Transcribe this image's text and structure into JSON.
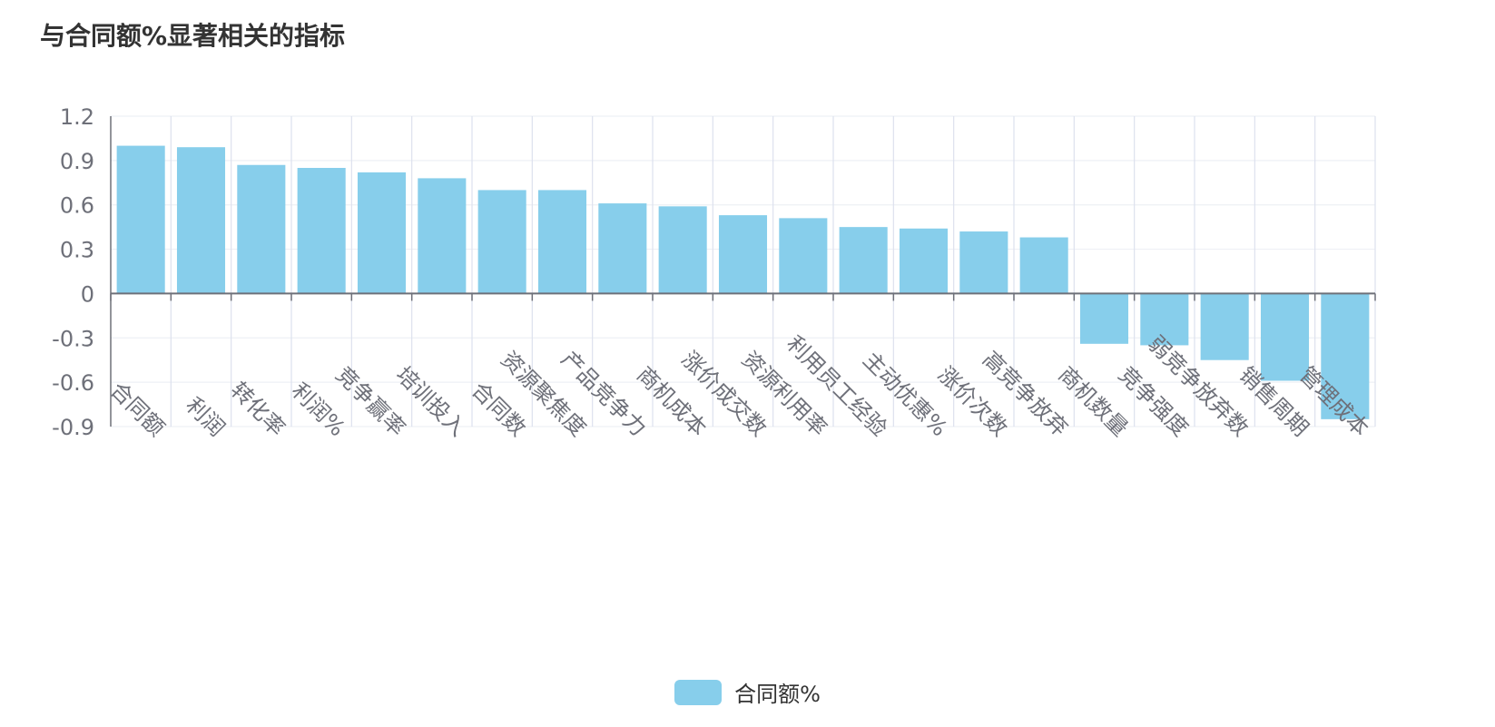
{
  "page": {
    "title": "与合同额%显著相关的指标"
  },
  "colors": {
    "bar": "#87CEEB",
    "axis": "#6E7079",
    "grid": "#EEF0F5",
    "vgrid": "#DDE1EE",
    "text": "#6E7079"
  },
  "chart_data": {
    "type": "bar",
    "categories": [
      "合同额",
      "利润",
      "转化率",
      "利润%",
      "竞争赢率",
      "培训投入",
      "合同数",
      "资源聚焦度",
      "产品竞争力",
      "商机成本",
      "涨价成交数",
      "资源利用率",
      "利用员工经验",
      "主动优惠%",
      "涨价次数",
      "高竞争放弃",
      "商机数量",
      "竞争强度",
      "弱竞争放弃数",
      "销售周期",
      "管理成本"
    ],
    "series": [
      {
        "name": "合同额%",
        "values": [
          1.0,
          0.99,
          0.87,
          0.85,
          0.82,
          0.78,
          0.7,
          0.7,
          0.61,
          0.59,
          0.53,
          0.51,
          0.45,
          0.44,
          0.42,
          0.38,
          -0.34,
          -0.35,
          -0.45,
          -0.59,
          -0.85
        ]
      }
    ],
    "y_ticks": [
      "1.2",
      "0.9",
      "0.6",
      "0.3",
      "0",
      "-0.3",
      "-0.6",
      "-0.9"
    ],
    "ylim": [
      -0.9,
      1.2
    ],
    "legend_position": "bottom-center",
    "grid": true
  }
}
